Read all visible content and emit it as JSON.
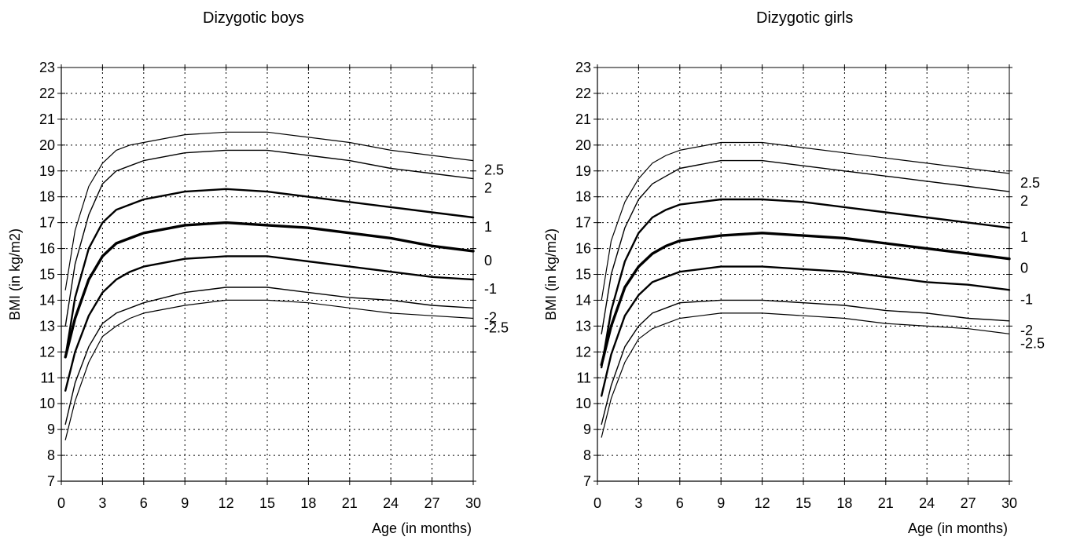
{
  "chart_data": [
    {
      "type": "line",
      "title": "Dizygotic boys",
      "xlabel": "Age (in months)",
      "ylabel": "BMI (in kg/m2)",
      "xlim": [
        0,
        30
      ],
      "ylim": [
        7,
        23
      ],
      "x_ticks": [
        "0",
        "3",
        "6",
        "9",
        "12",
        "15",
        "18",
        "21",
        "24",
        "27",
        "30"
      ],
      "y_ticks": [
        "7",
        "8",
        "9",
        "10",
        "11",
        "12",
        "13",
        "14",
        "15",
        "16",
        "17",
        "18",
        "19",
        "20",
        "21",
        "22",
        "23"
      ],
      "grid": true,
      "x": [
        0.3,
        1,
        2,
        3,
        4,
        5,
        6,
        9,
        12,
        15,
        18,
        21,
        24,
        27,
        30
      ],
      "series": [
        {
          "name": "2.5",
          "values": [
            14.4,
            16.7,
            18.4,
            19.3,
            19.8,
            20.0,
            20.1,
            20.4,
            20.5,
            20.5,
            20.3,
            20.1,
            19.8,
            19.6,
            19.4
          ]
        },
        {
          "name": "2",
          "values": [
            13.0,
            15.4,
            17.3,
            18.5,
            19.0,
            19.2,
            19.4,
            19.7,
            19.8,
            19.8,
            19.6,
            19.4,
            19.1,
            18.9,
            18.7
          ]
        },
        {
          "name": "1",
          "values": [
            11.8,
            14.1,
            16.0,
            17.0,
            17.5,
            17.7,
            17.9,
            18.2,
            18.3,
            18.2,
            18.0,
            17.8,
            17.6,
            17.4,
            17.2
          ]
        },
        {
          "name": "0",
          "values": [
            11.8,
            13.3,
            14.8,
            15.7,
            16.2,
            16.4,
            16.6,
            16.9,
            17.0,
            16.9,
            16.8,
            16.6,
            16.4,
            16.1,
            15.9
          ]
        },
        {
          "name": "-1",
          "values": [
            10.5,
            12.0,
            13.4,
            14.3,
            14.8,
            15.1,
            15.3,
            15.6,
            15.7,
            15.7,
            15.5,
            15.3,
            15.1,
            14.9,
            14.8
          ]
        },
        {
          "name": "-2",
          "values": [
            9.2,
            10.8,
            12.2,
            13.1,
            13.5,
            13.7,
            13.9,
            14.3,
            14.5,
            14.5,
            14.3,
            14.1,
            14.0,
            13.8,
            13.7
          ]
        },
        {
          "name": "-2.5",
          "values": [
            8.6,
            10.1,
            11.6,
            12.6,
            13.0,
            13.3,
            13.5,
            13.8,
            14.0,
            14.0,
            13.9,
            13.7,
            13.5,
            13.4,
            13.3
          ]
        }
      ]
    },
    {
      "type": "line",
      "title": "Dizygotic girls",
      "xlabel": "Age (in months)",
      "ylabel": "BMI (in kg/m2)",
      "xlim": [
        0,
        30
      ],
      "ylim": [
        7,
        23
      ],
      "x_ticks": [
        "0",
        "3",
        "6",
        "9",
        "12",
        "15",
        "18",
        "21",
        "24",
        "27",
        "30"
      ],
      "y_ticks": [
        "7",
        "8",
        "9",
        "10",
        "11",
        "12",
        "13",
        "14",
        "15",
        "16",
        "17",
        "18",
        "19",
        "20",
        "21",
        "22",
        "23"
      ],
      "grid": true,
      "x": [
        0.3,
        1,
        2,
        3,
        4,
        5,
        6,
        9,
        12,
        15,
        18,
        21,
        24,
        27,
        30
      ],
      "series": [
        {
          "name": "2.5",
          "values": [
            14.0,
            16.3,
            17.8,
            18.7,
            19.3,
            19.6,
            19.8,
            20.1,
            20.1,
            19.9,
            19.7,
            19.5,
            19.3,
            19.1,
            18.9
          ]
        },
        {
          "name": "2",
          "values": [
            12.7,
            15.0,
            16.8,
            17.9,
            18.5,
            18.8,
            19.1,
            19.4,
            19.4,
            19.2,
            19.0,
            18.8,
            18.6,
            18.4,
            18.2
          ]
        },
        {
          "name": "1",
          "values": [
            11.4,
            13.6,
            15.5,
            16.6,
            17.2,
            17.5,
            17.7,
            17.9,
            17.9,
            17.8,
            17.6,
            17.4,
            17.2,
            17.0,
            16.8
          ]
        },
        {
          "name": "0",
          "values": [
            11.5,
            13.0,
            14.5,
            15.3,
            15.8,
            16.1,
            16.3,
            16.5,
            16.6,
            16.5,
            16.4,
            16.2,
            16.0,
            15.8,
            15.6
          ]
        },
        {
          "name": "-1",
          "values": [
            10.3,
            11.9,
            13.4,
            14.2,
            14.7,
            14.9,
            15.1,
            15.3,
            15.3,
            15.2,
            15.1,
            14.9,
            14.7,
            14.6,
            14.4
          ]
        },
        {
          "name": "-2",
          "values": [
            9.2,
            10.7,
            12.2,
            13.0,
            13.5,
            13.7,
            13.9,
            14.0,
            14.0,
            13.9,
            13.8,
            13.6,
            13.5,
            13.3,
            13.2
          ]
        },
        {
          "name": "-2.5",
          "values": [
            8.7,
            10.2,
            11.6,
            12.5,
            12.9,
            13.1,
            13.3,
            13.5,
            13.5,
            13.4,
            13.3,
            13.1,
            13.0,
            12.9,
            12.7
          ]
        }
      ]
    }
  ]
}
